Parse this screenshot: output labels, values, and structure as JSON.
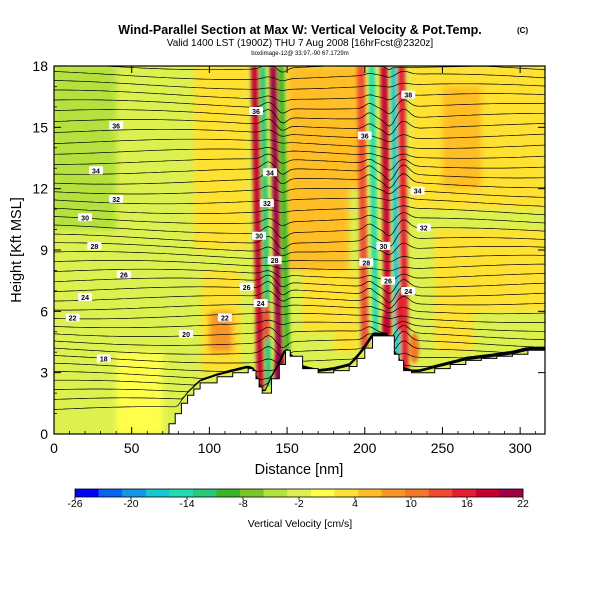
{
  "header": {
    "title": "Wind-Parallel Section at Max W: Vertical Velocity & Pot.Temp.",
    "title_mark": "(C)",
    "subtitle": "Valid 1400 LST (1900Z) THU 7 Aug 2008 [16hrFcst@2320z]",
    "subsubtitle": "boxlimage-12@ 33.97,-90 67.1729m"
  },
  "chart_data": {
    "type": "heatmap",
    "xlabel": "Distance [nm]",
    "ylabel": "Height [Kft MSL]",
    "xlim": [
      0,
      316
    ],
    "ylim": [
      0,
      18
    ],
    "x_ticks": [
      0,
      50,
      100,
      150,
      200,
      250,
      300
    ],
    "y_ticks": [
      0,
      3,
      6,
      9,
      12,
      15,
      18
    ],
    "grid": false,
    "colorbar": {
      "label": "Vertical Velocity [cm/s]",
      "tick_labels": [
        -26,
        -20,
        -14,
        -8,
        -2,
        4,
        10,
        16,
        22
      ],
      "colors": [
        "#0000ff",
        "#0a62f0",
        "#1496e6",
        "#14c8d2",
        "#1edcb4",
        "#28c878",
        "#3cb428",
        "#78c828",
        "#b4e13c",
        "#dcf050",
        "#ffff4b",
        "#ffe132",
        "#ffbe28",
        "#fa9628",
        "#f07828",
        "#f04b32",
        "#e61e32",
        "#c80032",
        "#a00046"
      ]
    },
    "terrain_profile": {
      "x": [
        0,
        70,
        74,
        78,
        82,
        86,
        90,
        94,
        105,
        115,
        125,
        128,
        130,
        132,
        134,
        136,
        140,
        145,
        149,
        152,
        160,
        170,
        180,
        190,
        195,
        200,
        205,
        210,
        215,
        219,
        222,
        225,
        230,
        235,
        245,
        255,
        265,
        275,
        285,
        295,
        305,
        316
      ],
      "y": [
        0,
        0,
        0.5,
        1.0,
        1.5,
        1.9,
        2.2,
        2.5,
        2.8,
        3.0,
        3.2,
        3.1,
        2.7,
        2.3,
        2.0,
        2.0,
        2.7,
        3.4,
        4.1,
        3.8,
        3.2,
        3.0,
        3.1,
        3.3,
        3.7,
        4.2,
        4.8,
        4.8,
        4.8,
        3.9,
        3.6,
        3.1,
        3.0,
        3.0,
        3.2,
        3.4,
        3.6,
        3.7,
        3.8,
        3.9,
        4.1,
        4.1
      ]
    },
    "theta_contours": {
      "labeled": [
        {
          "label": "18",
          "x": 32,
          "y": 3.7
        },
        {
          "label": "20",
          "x": 85,
          "y": 4.9
        },
        {
          "label": "22",
          "x": 110,
          "y": 5.7
        },
        {
          "label": "22",
          "x": 12,
          "y": 5.7
        },
        {
          "label": "24",
          "x": 20,
          "y": 6.7
        },
        {
          "label": "26",
          "x": 45,
          "y": 7.8
        },
        {
          "label": "28",
          "x": 26,
          "y": 9.2
        },
        {
          "label": "30",
          "x": 20,
          "y": 10.6
        },
        {
          "label": "32",
          "x": 40,
          "y": 11.5
        },
        {
          "label": "34",
          "x": 27,
          "y": 12.9
        },
        {
          "label": "36",
          "x": 40,
          "y": 15.1
        },
        {
          "label": "24",
          "x": 133,
          "y": 6.4
        },
        {
          "label": "26",
          "x": 124,
          "y": 7.2
        },
        {
          "label": "28",
          "x": 142,
          "y": 8.5
        },
        {
          "label": "30",
          "x": 132,
          "y": 9.7
        },
        {
          "label": "32",
          "x": 137,
          "y": 11.3
        },
        {
          "label": "34",
          "x": 139,
          "y": 12.8
        },
        {
          "label": "36",
          "x": 130,
          "y": 15.8
        },
        {
          "label": "26",
          "x": 215,
          "y": 7.5
        },
        {
          "label": "28",
          "x": 201,
          "y": 8.4
        },
        {
          "label": "30",
          "x": 212,
          "y": 9.2
        },
        {
          "label": "32",
          "x": 238,
          "y": 10.1
        },
        {
          "label": "34",
          "x": 234,
          "y": 11.9
        },
        {
          "label": "36",
          "x": 200,
          "y": 14.6
        },
        {
          "label": "38",
          "x": 228,
          "y": 16.6
        },
        {
          "label": "24",
          "x": 228,
          "y": 7.0
        }
      ]
    },
    "updraft_columns": [
      {
        "x": 133,
        "sign": "up",
        "strength": 18
      },
      {
        "x": 138,
        "sign": "down",
        "strength": -12
      },
      {
        "x": 145,
        "sign": "up",
        "strength": 20
      },
      {
        "x": 150,
        "sign": "down",
        "strength": -10
      },
      {
        "x": 200,
        "sign": "up",
        "strength": 14
      },
      {
        "x": 207,
        "sign": "down",
        "strength": -14
      },
      {
        "x": 215,
        "sign": "up",
        "strength": 18
      },
      {
        "x": 221,
        "sign": "down",
        "strength": -16
      },
      {
        "x": 226,
        "sign": "up",
        "strength": 16
      }
    ]
  }
}
